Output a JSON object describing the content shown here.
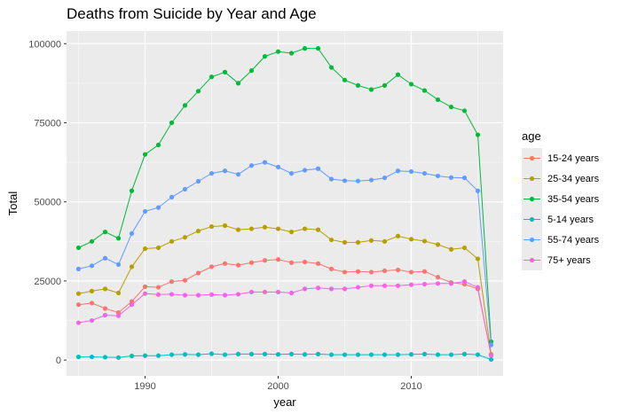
{
  "chart_data": {
    "type": "line",
    "title": "Deaths from Suicide by Year and Age",
    "xlabel": "year",
    "ylabel": "Total",
    "xlim": [
      1984.1,
      2016.9
    ],
    "ylim": [
      -5000,
      104000
    ],
    "x_ticks": [
      1990,
      2000,
      2010
    ],
    "y_ticks": [
      0,
      25000,
      50000,
      75000,
      100000
    ],
    "y_tick_labels": [
      "0",
      "25000",
      "50000",
      "75000",
      "100000"
    ],
    "legend_title": "age",
    "legend_position": "right",
    "grid": true,
    "x": [
      1985,
      1986,
      1987,
      1988,
      1989,
      1990,
      1991,
      1992,
      1993,
      1994,
      1995,
      1996,
      1997,
      1998,
      1999,
      2000,
      2001,
      2002,
      2003,
      2004,
      2005,
      2006,
      2007,
      2008,
      2009,
      2010,
      2011,
      2012,
      2013,
      2014,
      2015,
      2016
    ],
    "series": [
      {
        "name": "15-24 years",
        "color": "#F8766D",
        "values": [
          17500,
          18000,
          16300,
          15000,
          18500,
          23200,
          23000,
          24800,
          25200,
          27500,
          29500,
          30500,
          30000,
          30800,
          31500,
          31800,
          30800,
          31000,
          30500,
          28800,
          27800,
          28000,
          27800,
          28200,
          28500,
          27800,
          28000,
          26200,
          24500,
          24000,
          22500,
          1500
        ]
      },
      {
        "name": "25-34 years",
        "color": "#B79F00",
        "values": [
          21000,
          21800,
          22500,
          21200,
          29500,
          35200,
          35500,
          37500,
          38800,
          40800,
          42200,
          42500,
          41200,
          41500,
          42000,
          41500,
          40500,
          41500,
          41200,
          38000,
          37200,
          37200,
          37800,
          37500,
          39200,
          38200,
          37600,
          36500,
          35000,
          35500,
          32000,
          1800
        ]
      },
      {
        "name": "35-54 years",
        "color": "#00BA38",
        "values": [
          35500,
          37500,
          40500,
          38500,
          53500,
          65000,
          68000,
          75000,
          80500,
          85000,
          89500,
          91000,
          87500,
          91500,
          96000,
          97500,
          97000,
          98500,
          98500,
          92500,
          88500,
          86800,
          85500,
          86800,
          90200,
          87200,
          85200,
          82300,
          80000,
          78800,
          71200,
          5800
        ]
      },
      {
        "name": "5-14 years",
        "color": "#00BFC4",
        "values": [
          1000,
          1000,
          900,
          800,
          1300,
          1400,
          1400,
          1700,
          1800,
          1700,
          2000,
          1700,
          1900,
          1900,
          1900,
          1800,
          1900,
          1800,
          1900,
          1700,
          1700,
          1700,
          1700,
          1700,
          1700,
          1800,
          1900,
          1700,
          1700,
          1900,
          1700,
          200
        ]
      },
      {
        "name": "55-74 years",
        "color": "#619CFF",
        "values": [
          28800,
          29800,
          32200,
          30200,
          40000,
          47000,
          48200,
          51500,
          54000,
          56500,
          59000,
          59800,
          58700,
          61500,
          62500,
          61000,
          59000,
          60000,
          60500,
          57200,
          56700,
          56600,
          56900,
          57600,
          59800,
          59600,
          59000,
          58200,
          57700,
          57600,
          53500,
          4800
        ]
      },
      {
        "name": "75+ years",
        "color": "#F564E3",
        "values": [
          11800,
          12500,
          14200,
          14000,
          17500,
          21000,
          20700,
          20800,
          20500,
          20500,
          20700,
          20500,
          20800,
          21500,
          21500,
          21500,
          21200,
          22500,
          22800,
          22500,
          22500,
          23000,
          23500,
          23500,
          23500,
          23800,
          24000,
          24200,
          24200,
          24800,
          23000,
          1500
        ]
      }
    ]
  }
}
